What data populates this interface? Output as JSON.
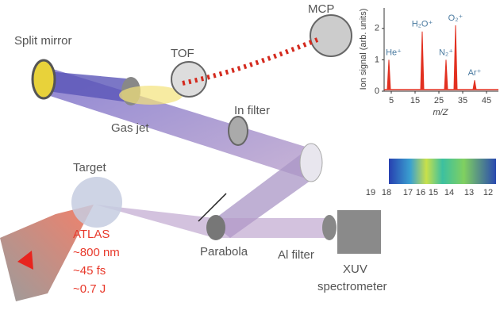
{
  "labels": {
    "split_mirror": "Split mirror",
    "tof": "TOF",
    "mcp": "MCP",
    "gas_jet": "Gas jet",
    "in_filter": "In filter",
    "target": "Target",
    "parabola": "Parabola",
    "al_filter": "Al filter",
    "xuv": "XUV",
    "spectrometer": "spectrometer",
    "atlas": "ATLAS",
    "atlas_params": [
      "~800 nm",
      "~45 fs",
      "~0.7 J"
    ]
  },
  "chart_data": {
    "type": "line",
    "ylabel": "Ion signal (arb. units)",
    "xlabel": "m/Z",
    "xlim": [
      2,
      50
    ],
    "ylim": [
      0,
      2.4
    ],
    "xticks": [
      5,
      15,
      25,
      35,
      45
    ],
    "yticks": [
      0,
      1,
      2
    ],
    "peaks": {
      "names": [
        "He⁺",
        "H₂O⁺",
        "N₂⁺",
        "O₂⁺",
        "Ar⁺"
      ],
      "x": [
        4,
        18,
        28,
        32,
        40
      ],
      "values": [
        1.0,
        1.9,
        1.0,
        2.1,
        0.35
      ]
    }
  },
  "harmonics": [
    "19",
    "18",
    "17",
    "16",
    "15",
    "14",
    "13",
    "12"
  ]
}
